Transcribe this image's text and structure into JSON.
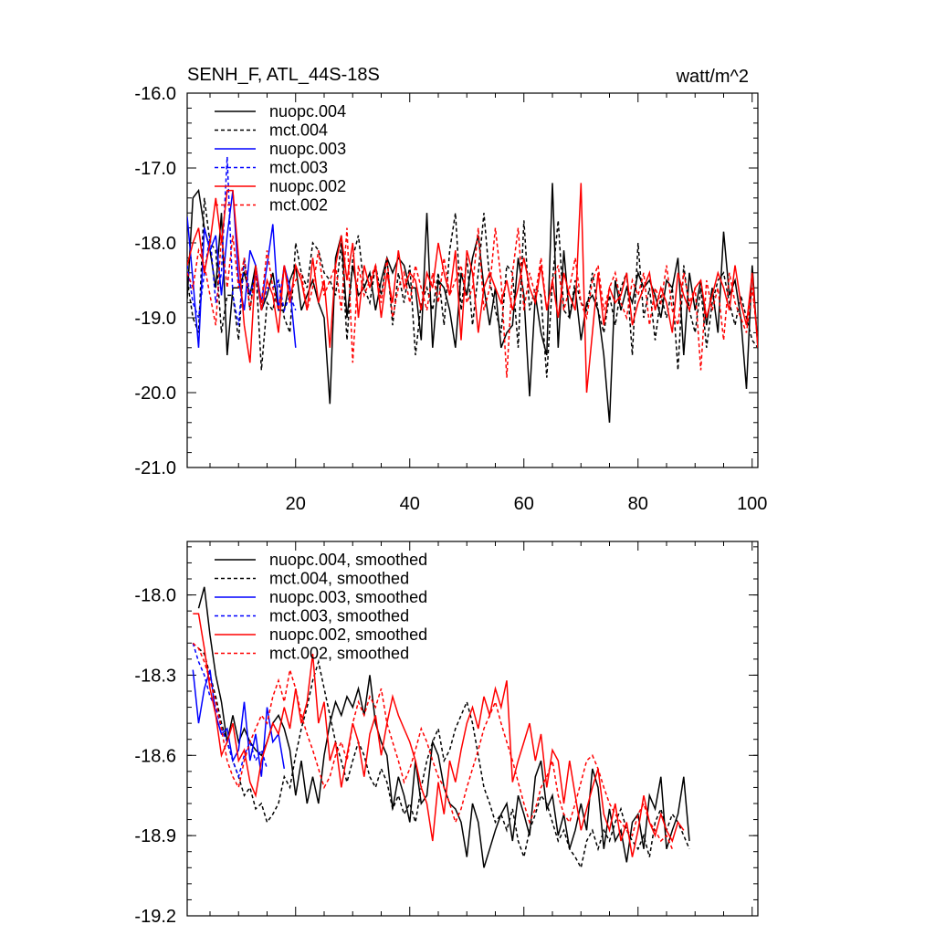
{
  "chart_data": [
    {
      "type": "line",
      "title": "SENH_F, ATL_44S-18S",
      "units": "watt/m^2",
      "xlim": [
        1,
        101
      ],
      "ylim": [
        -21.0,
        -16.0
      ],
      "xticks": [
        20,
        40,
        60,
        80,
        100
      ],
      "xticklabels": [
        "20",
        "40",
        "60",
        "80",
        "100"
      ],
      "yticks": [
        -16.0,
        -17.0,
        -18.0,
        -19.0,
        -20.0,
        -21.0
      ],
      "yticklabels": [
        "-16.0",
        "-17.0",
        "-18.0",
        "-19.0",
        "-20.0",
        "-21.0"
      ],
      "legend_position": "top-left",
      "series": [
        {
          "name": "nuopc.004",
          "color": "#000000",
          "dash": "solid",
          "x_start": 1,
          "values": [
            -18.75,
            -17.4,
            -17.3,
            -17.8,
            -18.1,
            -18.6,
            -17.6,
            -19.5,
            -18.6,
            -18.6,
            -18.4,
            -18.7,
            -18.3,
            -18.9,
            -18.7,
            -18.4,
            -18.9,
            -18.9,
            -18.5,
            -18.3,
            -18.9,
            -18.7,
            -18.5,
            -18.8,
            -19.0,
            -20.15,
            -18.2,
            -17.9,
            -19.0,
            -18.3,
            -18.7,
            -18.6,
            -18.4,
            -18.9,
            -18.5,
            -18.2,
            -18.4,
            -18.2,
            -18.3,
            -18.6,
            -18.6,
            -19.3,
            -17.6,
            -19.4,
            -18.5,
            -18.6,
            -18.9,
            -19.4,
            -18.4,
            -18.7,
            -18.2,
            -17.9,
            -18.6,
            -19.1,
            -18.6,
            -19.4,
            -19.2,
            -19.1,
            -18.2,
            -18.7,
            -20.05,
            -18.7,
            -19.2,
            -19.5,
            -17.2,
            -19.4,
            -18.1,
            -19.0,
            -18.6,
            -19.3,
            -18.8,
            -18.7,
            -18.9,
            -19.5,
            -20.4,
            -18.5,
            -18.9,
            -18.6,
            -18.8,
            -18.4,
            -18.6,
            -18.5,
            -18.7,
            -19.0,
            -18.5,
            -18.6,
            -18.2,
            -19.5,
            -18.4,
            -18.9,
            -18.5,
            -19.1,
            -18.6,
            -19.2,
            -17.85,
            -18.7,
            -18.5,
            -19.0,
            -19.95,
            -18.3,
            -19.4
          ]
        },
        {
          "name": "mct.004",
          "color": "#000000",
          "dash": "dashed",
          "x_start": 1,
          "values": [
            -18.5,
            -19.0,
            -19.2,
            -17.4,
            -18.0,
            -18.1,
            -19.2,
            -18.7,
            -18.7,
            -19.3,
            -18.2,
            -18.9,
            -18.3,
            -19.7,
            -18.8,
            -18.9,
            -18.5,
            -19.0,
            -19.2,
            -18.0,
            -18.4,
            -18.6,
            -18.0,
            -18.1,
            -18.4,
            -18.5,
            -18.7,
            -18.0,
            -19.3,
            -18.2,
            -17.9,
            -18.6,
            -18.8,
            -18.3,
            -18.7,
            -18.2,
            -19.1,
            -18.4,
            -18.8,
            -18.3,
            -19.5,
            -18.8,
            -18.6,
            -18.9,
            -18.4,
            -19.1,
            -18.1,
            -17.6,
            -18.9,
            -18.2,
            -19.1,
            -18.4,
            -17.6,
            -18.5,
            -18.9,
            -19.2,
            -18.3,
            -18.4,
            -19.4,
            -17.7,
            -18.9,
            -18.6,
            -18.7,
            -19.8,
            -18.5,
            -17.7,
            -18.9,
            -19.0,
            -18.5,
            -18.8,
            -18.9,
            -18.4,
            -18.9,
            -19.2,
            -18.7,
            -19.1,
            -18.6,
            -18.4,
            -19.5,
            -18.0,
            -19.0,
            -18.6,
            -19.3,
            -18.7,
            -19.0,
            -18.6,
            -19.7,
            -18.3,
            -18.9,
            -19.2,
            -18.6,
            -19.4,
            -18.8,
            -18.5,
            -18.4,
            -18.8,
            -19.1,
            -18.7,
            -19.0,
            -19.3,
            -19.4
          ]
        },
        {
          "name": "nuopc.003",
          "color": "#0000ff",
          "dash": "solid",
          "x_start": 1,
          "values": [
            -17.65,
            -18.5,
            -19.4,
            -17.8,
            -18.1,
            -17.9,
            -18.7,
            -17.9,
            -17.3,
            -18.5,
            -18.9,
            -18.1,
            -18.3,
            -18.8,
            -18.3,
            -17.75,
            -18.9,
            -18.3,
            -18.6,
            -19.4
          ]
        },
        {
          "name": "mct.003",
          "color": "#0000ff",
          "dash": "dashed",
          "x_start": 1,
          "values": [
            -18.3,
            -18.8,
            -19.0,
            -18.4,
            -17.9,
            -18.8,
            -18.4,
            -16.85,
            -18.7,
            -19.1,
            -18.2,
            -18.7,
            -18.4,
            -18.9,
            -18.6,
            -18.6,
            -18.5,
            -18.9,
            -18.7,
            -18.9
          ]
        },
        {
          "name": "nuopc.002",
          "color": "#ff0000",
          "dash": "solid",
          "x_start": 1,
          "values": [
            -18.3,
            -18.0,
            -17.8,
            -18.4,
            -18.0,
            -17.4,
            -18.0,
            -17.3,
            -17.3,
            -18.2,
            -19.1,
            -19.6,
            -18.3,
            -18.9,
            -18.5,
            -18.7,
            -19.2,
            -18.3,
            -18.8,
            -18.3,
            -18.5,
            -18.9,
            -18.2,
            -18.8,
            -18.5,
            -19.4,
            -18.3,
            -17.9,
            -18.5,
            -18.0,
            -19.0,
            -18.3,
            -18.6,
            -18.3,
            -19.0,
            -18.4,
            -18.8,
            -18.1,
            -18.6,
            -18.4,
            -18.5,
            -18.9,
            -18.4,
            -18.6,
            -18.0,
            -18.4,
            -18.7,
            -18.1,
            -19.3,
            -18.1,
            -18.4,
            -19.2,
            -18.6,
            -18.4,
            -18.6,
            -18.8,
            -18.5,
            -18.9,
            -18.6,
            -18.2,
            -18.6,
            -18.8,
            -18.3,
            -18.9,
            -18.5,
            -19.0,
            -18.4,
            -18.7,
            -18.9,
            -17.2,
            -20.0,
            -19.2,
            -18.4,
            -19.1,
            -18.6,
            -18.8,
            -18.7,
            -18.4,
            -19.1,
            -18.8,
            -18.6,
            -18.4,
            -18.9,
            -18.6,
            -18.8,
            -19.2,
            -18.4,
            -18.7,
            -18.9,
            -18.6,
            -18.5,
            -19.0,
            -18.7,
            -18.4,
            -18.6,
            -18.9,
            -18.3,
            -18.8,
            -19.1,
            -18.4,
            -19.4
          ]
        },
        {
          "name": "mct.002",
          "color": "#ff0000",
          "dash": "dashed",
          "x_start": 1,
          "values": [
            -18.4,
            -18.6,
            -18.1,
            -18.3,
            -18.7,
            -19.1,
            -17.9,
            -18.6,
            -17.9,
            -18.6,
            -18.2,
            -18.9,
            -18.4,
            -18.8,
            -18.1,
            -18.6,
            -18.9,
            -18.3,
            -18.7,
            -18.5,
            -18.4,
            -18.9,
            -18.6,
            -18.1,
            -18.7,
            -18.5,
            -18.3,
            -18.9,
            -17.8,
            -19.6,
            -18.3,
            -18.7,
            -18.5,
            -18.3,
            -18.8,
            -18.2,
            -19.0,
            -18.6,
            -18.4,
            -18.8,
            -18.3,
            -18.6,
            -18.9,
            -18.4,
            -18.8,
            -18.2,
            -18.7,
            -18.5,
            -18.3,
            -18.8,
            -18.6,
            -17.8,
            -18.9,
            -18.6,
            -17.8,
            -18.5,
            -19.8,
            -18.4,
            -17.8,
            -18.9,
            -18.4,
            -18.7,
            -18.2,
            -18.9,
            -18.5,
            -18.3,
            -18.9,
            -18.6,
            -18.2,
            -18.8,
            -19.0,
            -18.5,
            -18.3,
            -18.9,
            -18.6,
            -18.4,
            -18.8,
            -19.0,
            -18.5,
            -18.7,
            -18.4,
            -19.1,
            -18.6,
            -18.8,
            -18.3,
            -18.9,
            -19.1,
            -18.4,
            -18.8,
            -18.6,
            -19.7,
            -18.5,
            -18.9,
            -18.6,
            -19.3,
            -18.4,
            -18.8,
            -19.0,
            -19.2,
            -18.6,
            -19.3
          ]
        }
      ]
    },
    {
      "type": "line",
      "title": "",
      "xlim": [
        1,
        101
      ],
      "ylim": [
        -19.2,
        -17.8
      ],
      "yticks": [
        -18.0,
        -18.3,
        -18.6,
        -18.9,
        -19.2
      ],
      "yticklabels": [
        "-18.0",
        "-18.3",
        "-18.6",
        "-18.9",
        "-19.2"
      ],
      "legend_position": "top-left",
      "series": [
        {
          "name": "nuopc.004, smoothed",
          "color": "#000000",
          "dash": "solid",
          "x_start": 3,
          "values": [
            -18.05,
            -17.97,
            -18.15,
            -18.3,
            -18.4,
            -18.55,
            -18.45,
            -18.55,
            -18.5,
            -18.55,
            -18.58,
            -18.6,
            -18.55,
            -18.48,
            -18.45,
            -18.5,
            -18.58,
            -18.75,
            -18.62,
            -18.78,
            -18.68,
            -18.78,
            -18.6,
            -18.48,
            -18.4,
            -18.45,
            -18.38,
            -18.42,
            -18.35,
            -18.45,
            -18.3,
            -18.48,
            -18.55,
            -18.6,
            -18.8,
            -18.68,
            -18.75,
            -18.85,
            -18.62,
            -18.78,
            -18.75,
            -18.55,
            -18.6,
            -18.72,
            -18.78,
            -18.8,
            -18.85,
            -18.98,
            -18.78,
            -18.85,
            -19.02,
            -18.95,
            -18.88,
            -18.82,
            -18.78,
            -18.92,
            -18.75,
            -18.82,
            -18.9,
            -18.68,
            -18.62,
            -18.8,
            -18.75,
            -18.9,
            -18.82,
            -18.95,
            -18.88,
            -18.78,
            -18.88,
            -18.65,
            -18.72,
            -18.95,
            -18.8,
            -18.92,
            -18.88,
            -19.0,
            -18.85,
            -18.82,
            -18.95,
            -18.75,
            -18.8,
            -18.68,
            -18.95,
            -18.88,
            -18.82,
            -18.68,
            -18.92
          ]
        },
        {
          "name": "mct.004, smoothed",
          "color": "#000000",
          "dash": "dashed",
          "x_start": 3,
          "values": [
            -18.2,
            -18.22,
            -18.3,
            -18.38,
            -18.48,
            -18.55,
            -18.62,
            -18.68,
            -18.75,
            -18.72,
            -18.8,
            -18.78,
            -18.85,
            -18.82,
            -18.78,
            -18.68,
            -18.72,
            -18.6,
            -18.5,
            -18.42,
            -18.32,
            -18.25,
            -18.35,
            -18.45,
            -18.55,
            -18.62,
            -18.7,
            -18.62,
            -18.55,
            -18.6,
            -18.68,
            -18.72,
            -18.65,
            -18.7,
            -18.8,
            -18.75,
            -18.82,
            -18.78,
            -18.85,
            -18.72,
            -18.62,
            -18.55,
            -18.5,
            -18.62,
            -18.58,
            -18.5,
            -18.45,
            -18.4,
            -18.48,
            -18.6,
            -18.72,
            -18.78,
            -18.85,
            -18.82,
            -18.88,
            -18.8,
            -18.92,
            -18.98,
            -18.88,
            -18.82,
            -18.75,
            -18.78,
            -18.85,
            -18.92,
            -18.88,
            -18.95,
            -18.98,
            -19.02,
            -18.92,
            -18.88,
            -18.95,
            -18.88,
            -18.92,
            -18.85,
            -18.8,
            -18.88,
            -18.92,
            -18.95,
            -18.9,
            -18.98,
            -18.85,
            -18.8,
            -18.88,
            -18.82,
            -18.85,
            -18.9,
            -18.95
          ]
        },
        {
          "name": "nuopc.003, smoothed",
          "color": "#0000ff",
          "dash": "solid",
          "x_start": 2,
          "values": [
            -18.28,
            -18.48,
            -18.35,
            -18.28,
            -18.45,
            -18.52,
            -18.5,
            -18.62,
            -18.58,
            -18.4,
            -18.62,
            -18.52,
            -18.68,
            -18.42,
            -18.55,
            -18.52,
            -18.65
          ]
        },
        {
          "name": "mct.003, smoothed",
          "color": "#0000ff",
          "dash": "dashed",
          "x_start": 2,
          "values": [
            -18.18,
            -18.25,
            -18.3,
            -18.38,
            -18.42,
            -18.5,
            -18.55,
            -18.62,
            -18.68,
            -18.6,
            -18.55,
            -18.62,
            -18.58,
            -18.65
          ]
        },
        {
          "name": "nuopc.002, smoothed",
          "color": "#ff0000",
          "dash": "solid",
          "x_start": 2,
          "values": [
            -18.07,
            -18.07,
            -18.2,
            -18.35,
            -18.45,
            -18.6,
            -18.55,
            -18.48,
            -18.62,
            -18.58,
            -18.7,
            -18.75,
            -18.62,
            -18.55,
            -18.48,
            -18.52,
            -18.42,
            -18.5,
            -18.35,
            -18.48,
            -18.4,
            -18.22,
            -18.48,
            -18.4,
            -18.62,
            -18.55,
            -18.72,
            -18.6,
            -18.48,
            -18.55,
            -18.68,
            -18.52,
            -18.45,
            -18.6,
            -18.48,
            -18.38,
            -18.45,
            -18.5,
            -18.55,
            -18.62,
            -18.72,
            -18.78,
            -18.92,
            -18.7,
            -18.82,
            -18.62,
            -18.7,
            -18.58,
            -18.48,
            -18.42,
            -18.5,
            -18.38,
            -18.45,
            -18.35,
            -18.42,
            -18.32,
            -18.7,
            -18.62,
            -18.55,
            -18.48,
            -18.62,
            -18.52,
            -18.72,
            -18.58,
            -18.62,
            -18.78,
            -18.62,
            -18.75,
            -18.88,
            -18.8,
            -18.72,
            -18.65,
            -18.82,
            -18.88,
            -18.78,
            -18.92,
            -18.85,
            -18.98,
            -18.88,
            -18.75,
            -18.85,
            -18.9,
            -18.82,
            -18.88,
            -18.92,
            -18.85,
            -18.88
          ]
        },
        {
          "name": "mct.002, smoothed",
          "color": "#ff0000",
          "dash": "dashed",
          "x_start": 2,
          "values": [
            -18.18,
            -18.2,
            -18.25,
            -18.32,
            -18.4,
            -18.5,
            -18.62,
            -18.68,
            -18.72,
            -18.62,
            -18.55,
            -18.5,
            -18.45,
            -18.48,
            -18.38,
            -18.32,
            -18.4,
            -18.28,
            -18.35,
            -18.45,
            -18.52,
            -18.58,
            -18.65,
            -18.72,
            -18.68,
            -18.6,
            -18.55,
            -18.62,
            -18.48,
            -18.4,
            -18.45,
            -18.38,
            -18.42,
            -18.35,
            -18.48,
            -18.55,
            -18.62,
            -18.7,
            -18.65,
            -18.58,
            -18.5,
            -18.55,
            -18.62,
            -18.68,
            -18.72,
            -18.78,
            -18.85,
            -18.8,
            -18.72,
            -18.65,
            -18.58,
            -18.5,
            -18.45,
            -18.4,
            -18.48,
            -18.55,
            -18.62,
            -18.7,
            -18.78,
            -18.85,
            -18.8,
            -18.72,
            -18.68,
            -18.62,
            -18.75,
            -18.82,
            -18.85,
            -18.78,
            -18.7,
            -18.62,
            -18.6,
            -18.65,
            -18.72,
            -18.78,
            -18.82,
            -18.85,
            -18.88,
            -18.9,
            -18.82,
            -18.78,
            -18.85,
            -18.88,
            -18.92,
            -18.9,
            -18.95
          ]
        }
      ]
    }
  ]
}
